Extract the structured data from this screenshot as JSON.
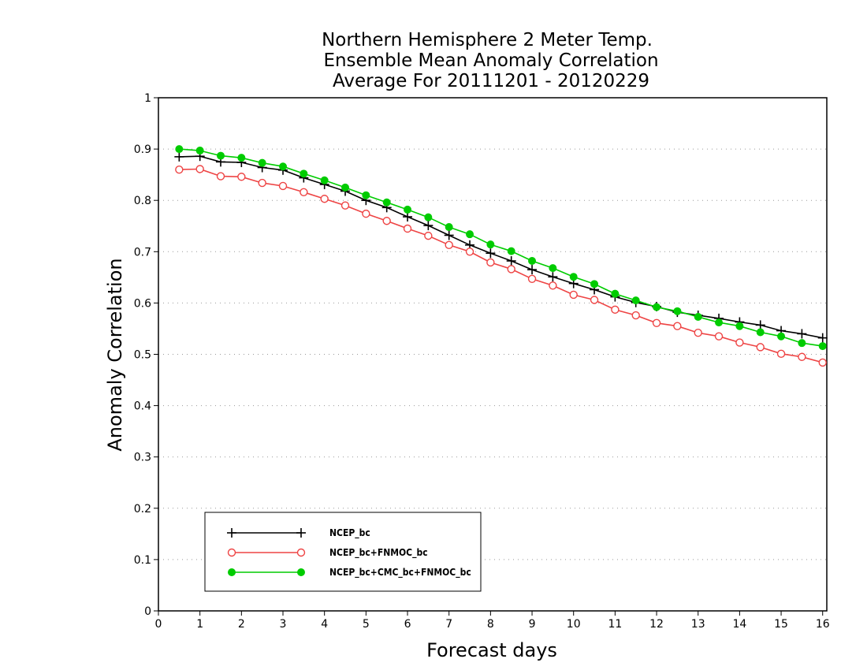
{
  "chart_data": {
    "type": "line",
    "title": [
      "Northern Hemisphere 2 Meter Temp.",
      "Ensemble Mean Anomaly Correlation",
      "Average For 20111201 - 20120229"
    ],
    "xlabel": "Forecast days",
    "ylabel": "Anomaly Correlation",
    "xlim": [
      0,
      16.1
    ],
    "ylim": [
      0,
      1
    ],
    "xticks": [
      "0",
      "1",
      "2",
      "3",
      "4",
      "5",
      "6",
      "7",
      "8",
      "9",
      "10",
      "11",
      "12",
      "13",
      "14",
      "15",
      "16"
    ],
    "yticks": [
      "0",
      "0.1",
      "0.2",
      "0.3",
      "0.4",
      "0.5",
      "0.6",
      "0.7",
      "0.8",
      "0.9",
      "1"
    ],
    "grid": "horizontal dotted",
    "legend_position": "bottom-left",
    "x": [
      0.5,
      1,
      1.5,
      2,
      2.5,
      3,
      3.5,
      4,
      4.5,
      5,
      5.5,
      6,
      6.5,
      7,
      7.5,
      8,
      8.5,
      9,
      9.5,
      10,
      10.5,
      11,
      11.5,
      12,
      12.5,
      13,
      13.5,
      14,
      14.5,
      15,
      15.5,
      16
    ],
    "series": [
      {
        "name": "NCEP_bc",
        "color": "#000000",
        "marker": "plus",
        "values": [
          0.885,
          0.886,
          0.875,
          0.874,
          0.864,
          0.859,
          0.844,
          0.831,
          0.818,
          0.8,
          0.786,
          0.768,
          0.751,
          0.732,
          0.713,
          0.697,
          0.682,
          0.665,
          0.651,
          0.638,
          0.626,
          0.612,
          0.601,
          0.593,
          0.582,
          0.576,
          0.57,
          0.563,
          0.557,
          0.546,
          0.54,
          0.532
        ]
      },
      {
        "name": "NCEP_bc+FNMOC_bc",
        "color": "#ee4444",
        "marker": "open-circle",
        "values": [
          0.86,
          0.861,
          0.847,
          0.846,
          0.834,
          0.828,
          0.816,
          0.803,
          0.79,
          0.774,
          0.76,
          0.745,
          0.731,
          0.713,
          0.7,
          0.679,
          0.666,
          0.647,
          0.634,
          0.616,
          0.606,
          0.587,
          0.576,
          0.561,
          0.555,
          0.542,
          0.535,
          0.523,
          0.514,
          0.501,
          0.495,
          0.484
        ]
      },
      {
        "name": "NCEP_bc+CMC_bc+FNMOC_bc",
        "color": "#00cc00",
        "marker": "filled-circle",
        "values": [
          0.9,
          0.897,
          0.887,
          0.883,
          0.873,
          0.866,
          0.852,
          0.839,
          0.825,
          0.81,
          0.796,
          0.782,
          0.767,
          0.748,
          0.734,
          0.714,
          0.701,
          0.682,
          0.668,
          0.651,
          0.637,
          0.618,
          0.605,
          0.592,
          0.584,
          0.573,
          0.562,
          0.555,
          0.543,
          0.535,
          0.522,
          0.516
        ]
      }
    ]
  }
}
